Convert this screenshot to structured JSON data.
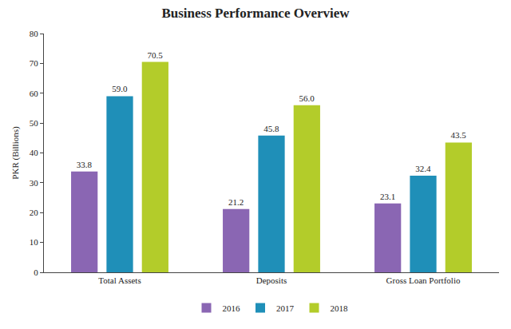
{
  "chart_data": {
    "type": "bar",
    "title": "Business Performance Overview",
    "y_label": "PKR (Billions)",
    "categories": [
      "Total Assets",
      "Deposits",
      "Gross Loan Portfolio"
    ],
    "series": [
      {
        "name": "2016",
        "color": "#8a66b3",
        "values": [
          33.8,
          21.2,
          23.1
        ],
        "value_labels": [
          "33.8",
          "21.2",
          "23.1"
        ]
      },
      {
        "name": "2017",
        "color": "#1f8fb8",
        "values": [
          59.0,
          45.8,
          32.4
        ],
        "value_labels": [
          "59.0",
          "45.8",
          "32.4"
        ]
      },
      {
        "name": "2018",
        "color": "#b3cc2a",
        "values": [
          70.5,
          56.0,
          43.5
        ],
        "value_labels": [
          "70.5",
          "56.0",
          "43.5"
        ]
      }
    ],
    "ylim": [
      0,
      80
    ],
    "yticks": [
      0,
      10,
      20,
      30,
      40,
      50,
      60,
      70,
      80
    ],
    "grid": false,
    "legend": "bottom",
    "data_labels": true
  }
}
